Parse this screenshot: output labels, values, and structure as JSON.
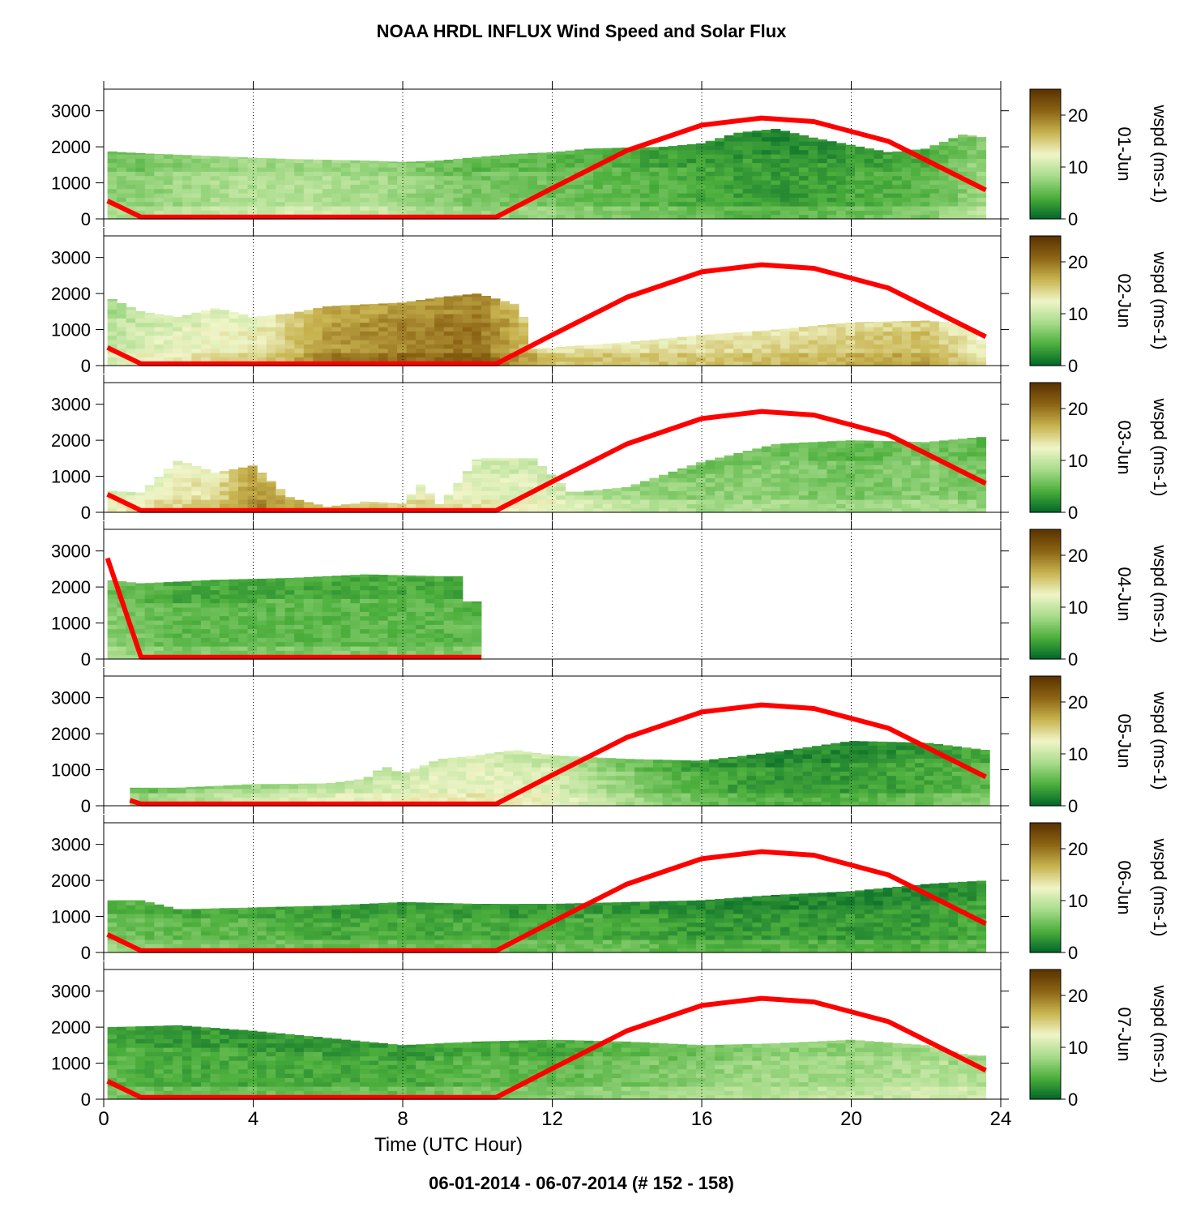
{
  "title": "NOAA HRDL INFLUX Wind Speed and Solar Flux",
  "footer": "06-01-2014 - 06-07-2014   (# 152 - 158)",
  "xlabel": "Time (UTC Hour)",
  "x_ticks": [
    "0",
    "4",
    "8",
    "12",
    "16",
    "20",
    "24"
  ],
  "y_ticks": [
    "0",
    "1000",
    "2000",
    "3000"
  ],
  "colorbar_ticks": [
    "0",
    "10",
    "20"
  ],
  "colorbar_label": "wspd (ms-1)",
  "colors": {
    "solar_line": "#ff0000",
    "colormap": [
      "#006428",
      "#4caf3c",
      "#a8dc8c",
      "#f0f5c8",
      "#c8b450",
      "#8c6414",
      "#5a3200"
    ]
  },
  "chart_data": {
    "type": "heatmap",
    "x_range": [
      0,
      24
    ],
    "y_range": [
      0,
      3600
    ],
    "color_range": [
      0,
      25
    ],
    "x_unit": "UTC hour",
    "panels": [
      {
        "date": "01-Jun",
        "wind_top": [
          [
            0.1,
            1880
          ],
          [
            1,
            1820
          ],
          [
            3,
            1740
          ],
          [
            5,
            1660
          ],
          [
            7,
            1620
          ],
          [
            8,
            1580
          ],
          [
            9,
            1620
          ],
          [
            10,
            1720
          ],
          [
            11,
            1800
          ],
          [
            12,
            1850
          ],
          [
            13,
            1950
          ],
          [
            14,
            1980
          ],
          [
            15,
            2000
          ],
          [
            16,
            2100
          ],
          [
            17,
            2400
          ],
          [
            18,
            2500
          ],
          [
            19,
            2250
          ],
          [
            20,
            2050
          ],
          [
            21,
            1850
          ],
          [
            22,
            1950
          ],
          [
            23,
            2350
          ],
          [
            23.6,
            2250
          ]
        ],
        "wind_levels": [
          [
            0,
            7
          ],
          [
            1,
            7
          ],
          [
            2,
            8
          ],
          [
            4,
            9
          ],
          [
            6,
            9
          ],
          [
            8,
            8
          ],
          [
            10,
            6
          ],
          [
            11,
            6
          ],
          [
            12,
            6
          ],
          [
            14,
            5
          ],
          [
            16,
            4
          ],
          [
            18,
            3
          ],
          [
            20,
            4
          ],
          [
            22,
            5
          ],
          [
            23.6,
            8
          ]
        ],
        "solar_flux": [
          [
            0.1,
            500
          ],
          [
            1,
            50
          ],
          [
            10.5,
            50
          ],
          [
            12,
            850
          ],
          [
            14,
            1900
          ],
          [
            16,
            2600
          ],
          [
            17.6,
            2800
          ],
          [
            19,
            2700
          ],
          [
            21,
            2150
          ],
          [
            23.6,
            800
          ]
        ]
      },
      {
        "date": "02-Jun",
        "wind_top": [
          [
            0.1,
            1900
          ],
          [
            1,
            1500
          ],
          [
            2,
            1350
          ],
          [
            3,
            1600
          ],
          [
            4,
            1350
          ],
          [
            5,
            1450
          ],
          [
            6,
            1650
          ],
          [
            7,
            1700
          ],
          [
            8,
            1750
          ],
          [
            9,
            1900
          ],
          [
            10,
            2000
          ],
          [
            11.2,
            1650
          ],
          [
            11.3,
            450
          ],
          [
            14,
            650
          ],
          [
            16,
            850
          ],
          [
            18,
            1000
          ],
          [
            20,
            1200
          ],
          [
            22,
            1250
          ],
          [
            23,
            1150
          ],
          [
            23.6,
            600
          ]
        ],
        "wind_levels": [
          [
            0,
            9
          ],
          [
            1,
            11
          ],
          [
            2,
            12
          ],
          [
            4,
            13
          ],
          [
            6,
            18
          ],
          [
            8,
            19
          ],
          [
            10,
            20
          ],
          [
            11,
            17
          ],
          [
            12,
            14
          ],
          [
            16,
            14
          ],
          [
            20,
            15
          ],
          [
            22,
            16
          ],
          [
            23.6,
            12
          ]
        ],
        "solar_flux": [
          [
            0.1,
            500
          ],
          [
            1,
            50
          ],
          [
            10.5,
            50
          ],
          [
            12,
            850
          ],
          [
            14,
            1900
          ],
          [
            16,
            2600
          ],
          [
            17.6,
            2800
          ],
          [
            19,
            2700
          ],
          [
            21,
            2150
          ],
          [
            23.6,
            800
          ]
        ]
      },
      {
        "date": "03-Jun",
        "wind_top": [
          [
            0.1,
            600
          ],
          [
            1,
            550
          ],
          [
            2,
            1450
          ],
          [
            3,
            1100
          ],
          [
            4,
            1300
          ],
          [
            5,
            400
          ],
          [
            6,
            150
          ],
          [
            7,
            300
          ],
          [
            8,
            250
          ],
          [
            8.5,
            800
          ],
          [
            9,
            200
          ],
          [
            10,
            1500
          ],
          [
            11.5,
            1500
          ],
          [
            12.5,
            550
          ],
          [
            14,
            700
          ],
          [
            16,
            1400
          ],
          [
            18,
            1900
          ],
          [
            20,
            2000
          ],
          [
            22,
            1950
          ],
          [
            23.6,
            2100
          ]
        ],
        "wind_levels": [
          [
            0,
            11
          ],
          [
            1,
            12
          ],
          [
            3,
            14
          ],
          [
            4,
            18
          ],
          [
            5,
            16
          ],
          [
            6,
            14
          ],
          [
            8,
            13
          ],
          [
            10,
            12
          ],
          [
            12,
            11
          ],
          [
            14,
            8
          ],
          [
            16,
            7
          ],
          [
            18,
            7
          ],
          [
            20,
            6
          ],
          [
            22,
            7
          ],
          [
            23.6,
            6
          ]
        ],
        "solar_flux": [
          [
            0.1,
            500
          ],
          [
            1,
            50
          ],
          [
            10.5,
            50
          ],
          [
            12,
            850
          ],
          [
            14,
            1900
          ],
          [
            16,
            2600
          ],
          [
            17.6,
            2800
          ],
          [
            19,
            2700
          ],
          [
            21,
            2150
          ],
          [
            23.6,
            800
          ]
        ]
      },
      {
        "date": "04-Jun",
        "wind_top": [
          [
            0.1,
            2200
          ],
          [
            1,
            2100
          ],
          [
            3,
            2200
          ],
          [
            5,
            2250
          ],
          [
            7,
            2350
          ],
          [
            9,
            2300
          ],
          [
            9.5,
            2300
          ],
          [
            9.6,
            1600
          ],
          [
            10.1,
            1600
          ]
        ],
        "wind_levels": [
          [
            0,
            7
          ],
          [
            2,
            5
          ],
          [
            4,
            5
          ],
          [
            6,
            5
          ],
          [
            8,
            5
          ],
          [
            9.5,
            5
          ],
          [
            10.1,
            6
          ]
        ],
        "solar_flux": [
          [
            0.1,
            2800
          ],
          [
            1,
            50
          ],
          [
            10.1,
            50
          ]
        ]
      },
      {
        "date": "05-Jun",
        "wind_top": [
          [
            0.7,
            500
          ],
          [
            2,
            500
          ],
          [
            4,
            600
          ],
          [
            6,
            620
          ],
          [
            7,
            750
          ],
          [
            7.5,
            1100
          ],
          [
            8,
            900
          ],
          [
            9,
            1300
          ],
          [
            10,
            1400
          ],
          [
            11,
            1550
          ],
          [
            12,
            1400
          ],
          [
            13,
            1350
          ],
          [
            14,
            1300
          ],
          [
            16,
            1250
          ],
          [
            18,
            1500
          ],
          [
            20,
            1800
          ],
          [
            22,
            1750
          ],
          [
            23.6,
            1550
          ]
        ],
        "wind_levels": [
          [
            0.7,
            6
          ],
          [
            2,
            7
          ],
          [
            4,
            9
          ],
          [
            6,
            10
          ],
          [
            8,
            11
          ],
          [
            10,
            12
          ],
          [
            12,
            11
          ],
          [
            14,
            7
          ],
          [
            16,
            4
          ],
          [
            18,
            3
          ],
          [
            20,
            3
          ],
          [
            22,
            4
          ],
          [
            23.6,
            5
          ]
        ],
        "solar_flux": [
          [
            0.7,
            150
          ],
          [
            1,
            50
          ],
          [
            10.5,
            50
          ],
          [
            12,
            850
          ],
          [
            14,
            1900
          ],
          [
            16,
            2600
          ],
          [
            17.6,
            2800
          ],
          [
            19,
            2700
          ],
          [
            21,
            2150
          ],
          [
            23.6,
            800
          ]
        ]
      },
      {
        "date": "06-Jun",
        "wind_top": [
          [
            0.1,
            1450
          ],
          [
            1,
            1450
          ],
          [
            2,
            1200
          ],
          [
            4,
            1250
          ],
          [
            6,
            1300
          ],
          [
            8,
            1400
          ],
          [
            10,
            1350
          ],
          [
            12,
            1350
          ],
          [
            14,
            1400
          ],
          [
            16,
            1450
          ],
          [
            18,
            1600
          ],
          [
            20,
            1700
          ],
          [
            22,
            1900
          ],
          [
            23.6,
            2000
          ]
        ],
        "wind_levels": [
          [
            0,
            6
          ],
          [
            2,
            5
          ],
          [
            4,
            5
          ],
          [
            6,
            4
          ],
          [
            8,
            4
          ],
          [
            10,
            4
          ],
          [
            12,
            4
          ],
          [
            14,
            4
          ],
          [
            16,
            3
          ],
          [
            18,
            3
          ],
          [
            20,
            3
          ],
          [
            22,
            3
          ],
          [
            23.6,
            4
          ]
        ],
        "solar_flux": [
          [
            0.1,
            500
          ],
          [
            1,
            50
          ],
          [
            10.5,
            50
          ],
          [
            12,
            850
          ],
          [
            14,
            1900
          ],
          [
            16,
            2600
          ],
          [
            17.6,
            2800
          ],
          [
            19,
            2700
          ],
          [
            21,
            2150
          ],
          [
            23.6,
            800
          ]
        ]
      },
      {
        "date": "07-Jun",
        "wind_top": [
          [
            0.1,
            2000
          ],
          [
            2,
            2050
          ],
          [
            4,
            1900
          ],
          [
            6,
            1700
          ],
          [
            8,
            1500
          ],
          [
            10,
            1600
          ],
          [
            12,
            1650
          ],
          [
            14,
            1600
          ],
          [
            16,
            1500
          ],
          [
            18,
            1550
          ],
          [
            20,
            1650
          ],
          [
            22,
            1500
          ],
          [
            23,
            1250
          ],
          [
            23.6,
            1200
          ]
        ],
        "wind_levels": [
          [
            0,
            5
          ],
          [
            2,
            4
          ],
          [
            4,
            4
          ],
          [
            6,
            4
          ],
          [
            8,
            4
          ],
          [
            10,
            5
          ],
          [
            12,
            5
          ],
          [
            14,
            6
          ],
          [
            16,
            7
          ],
          [
            18,
            8
          ],
          [
            20,
            8
          ],
          [
            22,
            9
          ],
          [
            23.6,
            9
          ]
        ],
        "solar_flux": [
          [
            0.1,
            500
          ],
          [
            1,
            50
          ],
          [
            10.5,
            50
          ],
          [
            12,
            850
          ],
          [
            14,
            1900
          ],
          [
            16,
            2600
          ],
          [
            17.6,
            2800
          ],
          [
            19,
            2700
          ],
          [
            21,
            2150
          ],
          [
            23.6,
            800
          ]
        ]
      }
    ]
  }
}
